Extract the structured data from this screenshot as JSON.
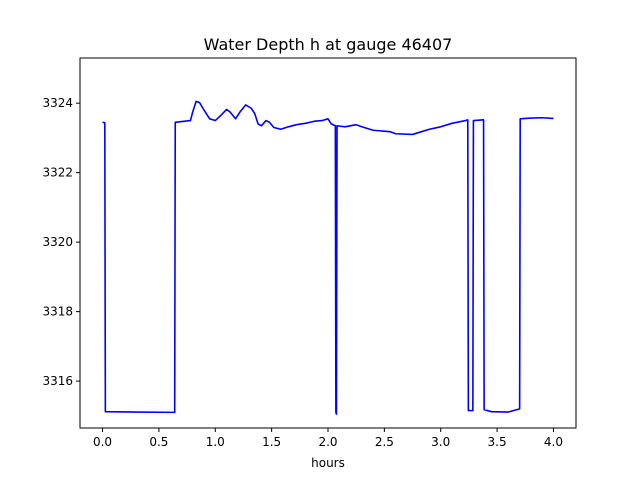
{
  "chart_data": {
    "type": "line",
    "title": "Water Depth h at gauge 46407",
    "xlabel": "hours",
    "ylabel": "",
    "xlim": [
      -0.2,
      4.2
    ],
    "ylim": [
      3314.65,
      3325.3
    ],
    "x_ticks": [
      0.0,
      0.5,
      1.0,
      1.5,
      2.0,
      2.5,
      3.0,
      3.5,
      4.0
    ],
    "x_tick_labels": [
      "0.0",
      "0.5",
      "1.0",
      "1.5",
      "2.0",
      "2.5",
      "3.0",
      "3.5",
      "4.0"
    ],
    "y_ticks": [
      3316,
      3318,
      3320,
      3322,
      3324
    ],
    "y_tick_labels": [
      "3316",
      "3318",
      "3320",
      "3322",
      "3324"
    ],
    "grid": false,
    "colors": {
      "line": "#0000ff",
      "axes": "#000000",
      "background": "#ffffff"
    },
    "series": [
      {
        "points": [
          [
            0.0,
            3323.45
          ],
          [
            0.02,
            3323.44
          ],
          [
            0.025,
            3315.12
          ],
          [
            0.3,
            3315.11
          ],
          [
            0.64,
            3315.1
          ],
          [
            0.645,
            3323.45
          ],
          [
            0.78,
            3323.5
          ],
          [
            0.8,
            3323.75
          ],
          [
            0.83,
            3324.05
          ],
          [
            0.86,
            3324.02
          ],
          [
            0.9,
            3323.8
          ],
          [
            0.95,
            3323.55
          ],
          [
            1.0,
            3323.5
          ],
          [
            1.05,
            3323.65
          ],
          [
            1.1,
            3323.82
          ],
          [
            1.13,
            3323.75
          ],
          [
            1.18,
            3323.55
          ],
          [
            1.22,
            3323.75
          ],
          [
            1.27,
            3323.95
          ],
          [
            1.32,
            3323.85
          ],
          [
            1.35,
            3323.7
          ],
          [
            1.38,
            3323.4
          ],
          [
            1.41,
            3323.35
          ],
          [
            1.45,
            3323.5
          ],
          [
            1.48,
            3323.45
          ],
          [
            1.52,
            3323.3
          ],
          [
            1.58,
            3323.25
          ],
          [
            1.65,
            3323.32
          ],
          [
            1.72,
            3323.38
          ],
          [
            1.8,
            3323.42
          ],
          [
            1.88,
            3323.48
          ],
          [
            1.95,
            3323.5
          ],
          [
            2.0,
            3323.55
          ],
          [
            2.03,
            3323.4
          ],
          [
            2.065,
            3323.35
          ],
          [
            2.07,
            3315.1
          ],
          [
            2.075,
            3315.05
          ],
          [
            2.08,
            3323.35
          ],
          [
            2.15,
            3323.32
          ],
          [
            2.25,
            3323.38
          ],
          [
            2.3,
            3323.32
          ],
          [
            2.4,
            3323.22
          ],
          [
            2.55,
            3323.18
          ],
          [
            2.6,
            3323.12
          ],
          [
            2.75,
            3323.1
          ],
          [
            2.8,
            3323.15
          ],
          [
            2.9,
            3323.25
          ],
          [
            3.0,
            3323.32
          ],
          [
            3.1,
            3323.42
          ],
          [
            3.22,
            3323.5
          ],
          [
            3.24,
            3323.52
          ],
          [
            3.245,
            3315.15
          ],
          [
            3.285,
            3315.15
          ],
          [
            3.29,
            3323.5
          ],
          [
            3.38,
            3323.52
          ],
          [
            3.385,
            3315.18
          ],
          [
            3.45,
            3315.12
          ],
          [
            3.6,
            3315.11
          ],
          [
            3.7,
            3315.2
          ],
          [
            3.705,
            3323.55
          ],
          [
            3.8,
            3323.57
          ],
          [
            3.9,
            3323.58
          ],
          [
            4.0,
            3323.56
          ]
        ]
      }
    ]
  }
}
